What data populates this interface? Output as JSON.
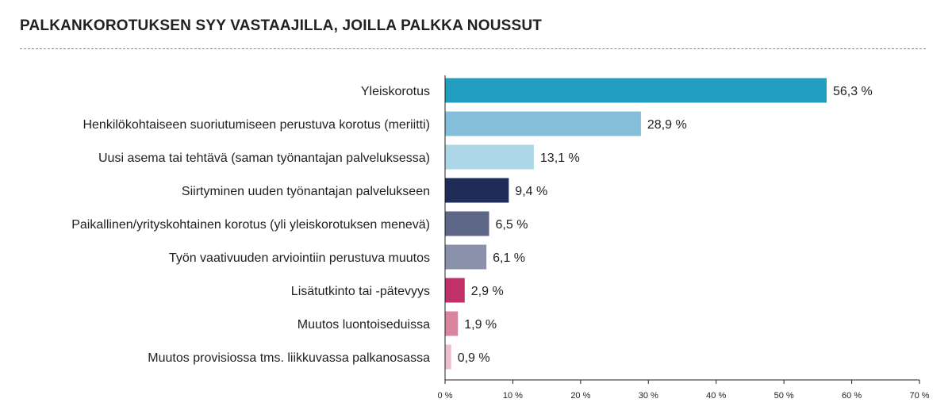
{
  "chart_data": {
    "type": "bar",
    "orientation": "horizontal",
    "title": "PALKANKOROTUKSEN SYY VASTAAJILLA, JOILLA PALKKA NOUSSUT",
    "categories": [
      "Yleiskorotus",
      "Henkilökohtaiseen suoriutumiseen perustuva korotus (meriitti)",
      "Uusi asema tai tehtävä (saman työnantajan palveluksessa)",
      "Siirtyminen uuden työnantajan palvelukseen",
      "Paikallinen/yrityskohtainen korotus (yli yleiskorotuksen menevä)",
      "Työn vaativuuden arviointiin perustuva muutos",
      "Lisätutkinto tai -pätevyys",
      "Muutos luontoiseduissa",
      "Muutos provisiossa tms. liikkuvassa palkanosassa"
    ],
    "values": [
      56.3,
      28.9,
      13.1,
      9.4,
      6.5,
      6.1,
      2.9,
      1.9,
      0.9
    ],
    "value_labels": [
      "56,3  %",
      "28,9  %",
      "13,1  %",
      "9,4  %",
      "6,5  %",
      "6,1  %",
      "2,9  %",
      "1,9  %",
      "0,9  %"
    ],
    "bar_colors": [
      "#219ebf",
      "#85bed8",
      "#add6e6",
      "#1f2c57",
      "#5f6789",
      "#8c91ab",
      "#bf3168",
      "#d9859f",
      "#ecbfcc"
    ],
    "xlim": [
      0,
      70
    ],
    "xticks": [
      0,
      10,
      20,
      30,
      40,
      50,
      60,
      70
    ],
    "xtick_labels": [
      "0 %",
      "10 %",
      "20 %",
      "30 %",
      "40 %",
      "50 %",
      "60 %",
      "70 %"
    ],
    "xlabel": "",
    "ylabel": "",
    "grid": false,
    "legend": "none"
  }
}
